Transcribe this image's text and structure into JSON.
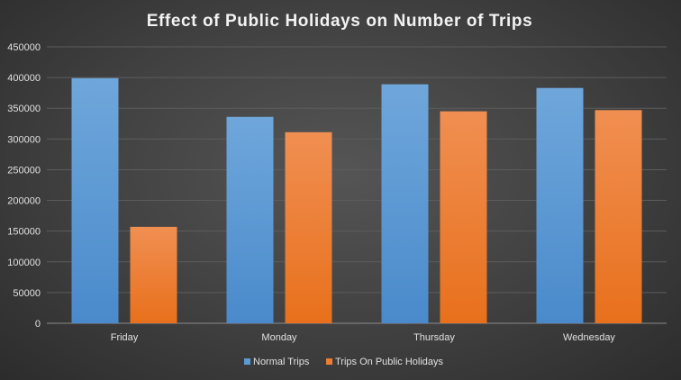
{
  "chart_data": {
    "type": "bar",
    "title": "Effect of Public Holidays on Number of Trips",
    "xlabel": "",
    "ylabel": "",
    "categories": [
      "Friday",
      "Monday",
      "Thursday",
      "Wednesday"
    ],
    "series": [
      {
        "name": "Normal Trips",
        "values": [
          399000,
          336000,
          389000,
          383000
        ],
        "color": "#5b9bd5"
      },
      {
        "name": "Trips On Public Holidays",
        "values": [
          157000,
          311000,
          345000,
          347000
        ],
        "color": "#ed7d31"
      }
    ],
    "ylim": [
      0,
      450000
    ],
    "yticks": [
      "0",
      "50000",
      "100000",
      "150000",
      "200000",
      "250000",
      "300000",
      "350000",
      "400000",
      "450000"
    ],
    "grid": true,
    "legend_position": "bottom"
  }
}
